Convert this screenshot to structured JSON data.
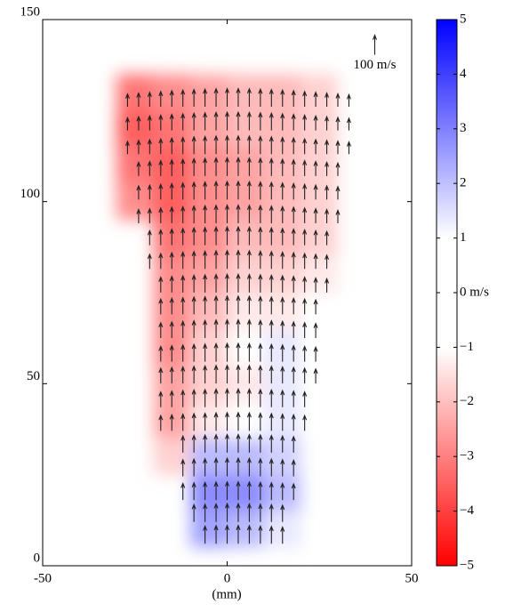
{
  "chart_data": {
    "type": "quiver",
    "xlabel": "(mm)",
    "xlim": [
      -50,
      50
    ],
    "xticks": [
      -50,
      0,
      50
    ],
    "ylim": [
      0,
      150
    ],
    "yticks": [
      0,
      50,
      100,
      150
    ],
    "arrow_color": "#222222",
    "reference_vector": {
      "value": 100,
      "label": "100 m/s",
      "x": 40,
      "y": 143
    },
    "x": [
      -27,
      -24,
      -21,
      -18,
      -15,
      -12,
      -9,
      -6,
      -3,
      0,
      3,
      6,
      9,
      12,
      15,
      18,
      21,
      24,
      27,
      30,
      33
    ],
    "rows": [
      {
        "y": 128,
        "values": [
          65,
          70,
          74,
          78,
          82,
          85,
          88,
          90,
          92,
          93,
          93,
          92,
          90,
          88,
          85,
          82,
          78,
          74,
          70,
          66,
          62
        ]
      },
      {
        "y": 121.5,
        "values": [
          65,
          70,
          74,
          78,
          82,
          85,
          88,
          90,
          92,
          93,
          93,
          92,
          90,
          88,
          85,
          82,
          78,
          74,
          70,
          66,
          62
        ]
      },
      {
        "y": 115,
        "values": [
          65,
          70,
          74,
          78,
          82,
          85,
          88,
          90,
          92,
          93,
          93,
          92,
          90,
          88,
          85,
          82,
          78,
          74,
          70,
          66,
          62
        ]
      },
      {
        "y": 109,
        "values": [
          null,
          70,
          74,
          78,
          82,
          85,
          88,
          90,
          92,
          93,
          93,
          92,
          90,
          88,
          85,
          82,
          78,
          74,
          70,
          66,
          null
        ]
      },
      {
        "y": 102.5,
        "values": [
          null,
          70,
          74,
          78,
          82,
          85,
          88,
          90,
          92,
          93,
          93,
          92,
          90,
          88,
          85,
          82,
          78,
          74,
          70,
          66,
          null
        ]
      },
      {
        "y": 96,
        "values": [
          null,
          70,
          74,
          78,
          82,
          85,
          88,
          90,
          92,
          93,
          93,
          92,
          90,
          88,
          85,
          82,
          78,
          74,
          70,
          66,
          null
        ]
      },
      {
        "y": 90,
        "values": [
          null,
          null,
          74,
          78,
          82,
          85,
          88,
          90,
          92,
          93,
          93,
          92,
          90,
          88,
          85,
          82,
          78,
          74,
          70,
          null,
          null
        ]
      },
      {
        "y": 83.5,
        "values": [
          null,
          null,
          74,
          78,
          82,
          85,
          88,
          90,
          92,
          93,
          93,
          92,
          90,
          88,
          85,
          82,
          78,
          74,
          70,
          null,
          null
        ]
      },
      {
        "y": 77,
        "values": [
          null,
          null,
          null,
          78,
          82,
          85,
          88,
          90,
          92,
          93,
          93,
          92,
          90,
          88,
          85,
          82,
          78,
          74,
          70,
          null,
          null
        ]
      },
      {
        "y": 71,
        "values": [
          null,
          null,
          null,
          78,
          82,
          85,
          88,
          90,
          92,
          93,
          93,
          92,
          90,
          88,
          85,
          82,
          78,
          74,
          null,
          null,
          null
        ]
      },
      {
        "y": 64.5,
        "values": [
          null,
          null,
          null,
          78,
          82,
          85,
          88,
          90,
          92,
          93,
          93,
          92,
          90,
          88,
          85,
          82,
          78,
          74,
          null,
          null,
          null
        ]
      },
      {
        "y": 58,
        "values": [
          null,
          null,
          null,
          78,
          82,
          85,
          88,
          90,
          92,
          93,
          93,
          92,
          90,
          88,
          85,
          82,
          78,
          74,
          null,
          null,
          null
        ]
      },
      {
        "y": 52,
        "values": [
          null,
          null,
          null,
          78,
          82,
          85,
          88,
          90,
          92,
          93,
          93,
          92,
          90,
          88,
          85,
          82,
          78,
          74,
          null,
          null,
          null
        ]
      },
      {
        "y": 45.5,
        "values": [
          null,
          null,
          null,
          78,
          82,
          85,
          88,
          90,
          92,
          93,
          93,
          92,
          90,
          88,
          85,
          82,
          78,
          null,
          null,
          null,
          null
        ]
      },
      {
        "y": 39,
        "values": [
          null,
          null,
          null,
          78,
          82,
          85,
          88,
          90,
          92,
          93,
          93,
          92,
          90,
          88,
          85,
          82,
          78,
          null,
          null,
          null,
          null
        ]
      },
      {
        "y": 33,
        "values": [
          null,
          null,
          null,
          null,
          null,
          85,
          88,
          90,
          92,
          93,
          93,
          92,
          90,
          88,
          85,
          82,
          null,
          null,
          null,
          null,
          null
        ]
      },
      {
        "y": 26.5,
        "values": [
          null,
          null,
          null,
          null,
          null,
          85,
          88,
          90,
          92,
          93,
          93,
          92,
          90,
          88,
          85,
          82,
          null,
          null,
          null,
          null,
          null
        ]
      },
      {
        "y": 20,
        "values": [
          null,
          null,
          null,
          null,
          null,
          85,
          88,
          90,
          92,
          93,
          93,
          92,
          90,
          88,
          85,
          82,
          null,
          null,
          null,
          null,
          null
        ]
      },
      {
        "y": 14,
        "values": [
          null,
          null,
          null,
          null,
          null,
          null,
          88,
          90,
          92,
          93,
          93,
          92,
          90,
          88,
          85,
          null,
          null,
          null,
          null,
          null,
          null
        ]
      },
      {
        "y": 8,
        "values": [
          null,
          null,
          null,
          null,
          null,
          null,
          null,
          90,
          92,
          93,
          93,
          92,
          90,
          88,
          85,
          null,
          null,
          null,
          null,
          null,
          null
        ]
      }
    ],
    "field": {
      "x": [
        -25,
        -15,
        -5,
        5,
        15,
        25
      ],
      "y": [
        10,
        20,
        30,
        40,
        50,
        60,
        70,
        80,
        90,
        100,
        110,
        120,
        130
      ],
      "values": [
        [
          null,
          null,
          2,
          1.5,
          0.5,
          null
        ],
        [
          null,
          null,
          2.5,
          2.5,
          1.5,
          null
        ],
        [
          null,
          -1,
          1.5,
          1.5,
          1,
          null
        ],
        [
          null,
          -2,
          -0.5,
          0,
          0.5,
          null
        ],
        [
          null,
          -2,
          -1,
          -0.5,
          0.5,
          null
        ],
        [
          null,
          -2.5,
          -1,
          0,
          0.5,
          null
        ],
        [
          null,
          -2.5,
          -1.5,
          -0.5,
          -0.5,
          null
        ],
        [
          null,
          -2.5,
          -2,
          -1,
          -1,
          -0.5
        ],
        [
          null,
          -3,
          -2.5,
          -1.5,
          -1.5,
          -1
        ],
        [
          -2.5,
          -3.5,
          -2.5,
          -2,
          -1.5,
          -1
        ],
        [
          -3,
          -3.5,
          -2.5,
          -2,
          -1.5,
          -1
        ],
        [
          -3.5,
          -3,
          -2,
          -1.5,
          -1.5,
          -1
        ],
        [
          -3,
          -2.5,
          -2,
          -1.5,
          -1.5,
          -1
        ]
      ]
    },
    "clim": [
      -5,
      5
    ],
    "cticks": [
      5,
      4,
      3,
      2,
      1,
      {
        "value": 0,
        "label": "0 m/s"
      },
      {
        "value": -1,
        "label": "−1"
      },
      {
        "value": -2,
        "label": "−2"
      },
      {
        "value": -3,
        "label": "−3"
      },
      {
        "value": -4,
        "label": "−4"
      },
      {
        "value": -5,
        "label": "−5"
      }
    ],
    "positive_color": "#0000ff",
    "negative_color": "#ff0000"
  }
}
